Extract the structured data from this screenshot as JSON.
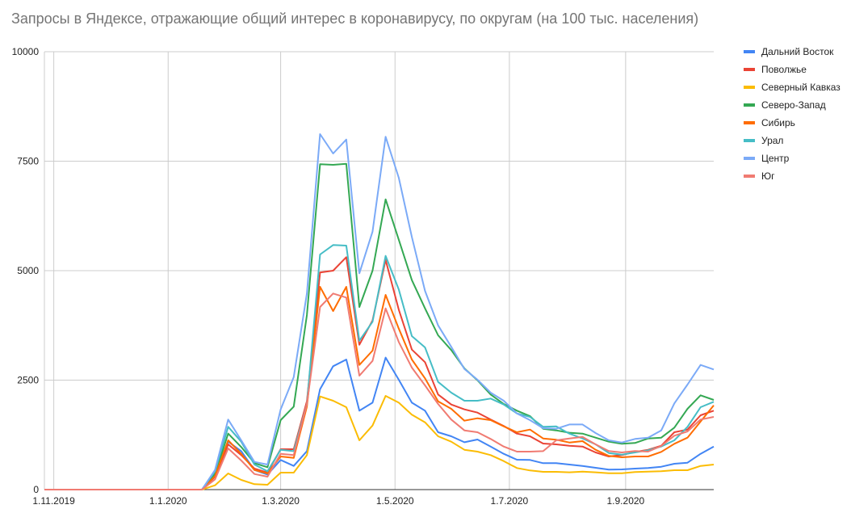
{
  "chart_data": {
    "type": "line",
    "title": "Запросы в Яндексе, отражающие общий интерес в коронавирусу, по округам (на 100 тыс. населения)",
    "xlabel": "",
    "ylabel": "",
    "ylim": [
      0,
      10000
    ],
    "xlim": [
      "2019-10-27",
      "2020-10-18"
    ],
    "yticks": [
      "0",
      "2500",
      "5000",
      "7500",
      "10000"
    ],
    "xticks": [
      {
        "label": "1.11.2019",
        "date": "2019-11-01"
      },
      {
        "label": "1.1.2020",
        "date": "2020-01-01"
      },
      {
        "label": "1.3.2020",
        "date": "2020-03-01"
      },
      {
        "label": "1.5.2020",
        "date": "2020-05-01"
      },
      {
        "label": "1.7.2020",
        "date": "2020-07-01"
      },
      {
        "label": "1.9.2020",
        "date": "2020-09-01"
      }
    ],
    "grid": true,
    "legend": "right",
    "x": [
      "2019-10-27",
      "2019-11-03",
      "2019-11-10",
      "2019-11-17",
      "2019-11-24",
      "2019-12-01",
      "2019-12-08",
      "2019-12-15",
      "2019-12-22",
      "2019-12-29",
      "2020-01-05",
      "2020-01-12",
      "2020-01-19",
      "2020-01-26",
      "2020-02-02",
      "2020-02-09",
      "2020-02-16",
      "2020-02-23",
      "2020-03-01",
      "2020-03-08",
      "2020-03-15",
      "2020-03-22",
      "2020-03-29",
      "2020-04-05",
      "2020-04-12",
      "2020-04-19",
      "2020-04-26",
      "2020-05-03",
      "2020-05-10",
      "2020-05-17",
      "2020-05-24",
      "2020-05-31",
      "2020-06-07",
      "2020-06-14",
      "2020-06-21",
      "2020-06-28",
      "2020-07-05",
      "2020-07-12",
      "2020-07-19",
      "2020-07-26",
      "2020-08-02",
      "2020-08-09",
      "2020-08-16",
      "2020-08-23",
      "2020-08-30",
      "2020-09-06",
      "2020-09-13",
      "2020-09-20",
      "2020-09-27",
      "2020-10-04",
      "2020-10-11",
      "2020-10-18"
    ],
    "series": [
      {
        "name": "Дальний Восток",
        "color": "#4285f4",
        "values": [
          0,
          0,
          0,
          0,
          0,
          0,
          0,
          0,
          0,
          0,
          0,
          0,
          0,
          387,
          1095,
          879,
          449,
          344,
          677,
          541,
          879,
          2294,
          2817,
          2970,
          1802,
          1986,
          3014,
          2509,
          1986,
          1802,
          1310,
          1218,
          1082,
          1144,
          984,
          818,
          683,
          677,
          603,
          603,
          572,
          541,
          498,
          455,
          461,
          480,
          492,
          523,
          590,
          615,
          818,
          984
        ]
      },
      {
        "name": "Поволжье",
        "color": "#ea4335",
        "values": [
          0,
          0,
          0,
          0,
          0,
          0,
          0,
          0,
          0,
          0,
          0,
          0,
          0,
          295,
          1033,
          787,
          480,
          387,
          923,
          923,
          2017,
          4957,
          5000,
          5308,
          3309,
          3862,
          5246,
          4108,
          3198,
          2909,
          2171,
          1943,
          1833,
          1759,
          1599,
          1452,
          1279,
          1218,
          1052,
          1033,
          1002,
          984,
          849,
          757,
          787,
          861,
          910,
          1002,
          1310,
          1371,
          1697,
          1802
        ]
      },
      {
        "name": "Северный Кавказ",
        "color": "#fbbc04",
        "values": [
          0,
          0,
          0,
          0,
          0,
          0,
          0,
          0,
          0,
          0,
          0,
          0,
          0,
          98,
          369,
          221,
          123,
          111,
          387,
          387,
          787,
          2128,
          2030,
          1882,
          1125,
          1463,
          2140,
          1986,
          1710,
          1537,
          1218,
          1095,
          910,
          867,
          787,
          652,
          492,
          437,
          406,
          406,
          394,
          412,
          394,
          375,
          375,
          400,
          412,
          418,
          443,
          443,
          541,
          572
        ]
      },
      {
        "name": "Северо-Запад",
        "color": "#34a853",
        "values": [
          0,
          0,
          0,
          0,
          0,
          0,
          0,
          0,
          0,
          0,
          0,
          0,
          0,
          356,
          1279,
          972,
          603,
          511,
          1587,
          1895,
          3985,
          7429,
          7417,
          7441,
          4170,
          5000,
          6630,
          5707,
          4785,
          4139,
          3524,
          3186,
          2768,
          2497,
          2171,
          1956,
          1802,
          1679,
          1390,
          1353,
          1298,
          1279,
          1187,
          1095,
          1046,
          1064,
          1168,
          1187,
          1415,
          1845,
          2153,
          2048
        ]
      },
      {
        "name": "Сибирь",
        "color": "#ff6d01",
        "values": [
          0,
          0,
          0,
          0,
          0,
          0,
          0,
          0,
          0,
          0,
          0,
          0,
          0,
          308,
          1125,
          818,
          449,
          369,
          756,
          726,
          1894,
          4631,
          4077,
          4631,
          2847,
          3173,
          4446,
          3677,
          2970,
          2540,
          2017,
          1845,
          1574,
          1630,
          1587,
          1445,
          1310,
          1371,
          1168,
          1138,
          1076,
          1107,
          910,
          769,
          738,
          757,
          757,
          861,
          1046,
          1187,
          1556,
          1925
        ]
      },
      {
        "name": "Урал",
        "color": "#46bdc6",
        "values": [
          0,
          0,
          0,
          0,
          0,
          0,
          0,
          0,
          0,
          0,
          0,
          0,
          0,
          418,
          1433,
          1095,
          572,
          418,
          910,
          879,
          1956,
          5369,
          5584,
          5572,
          3401,
          3832,
          5338,
          4570,
          3506,
          3247,
          2460,
          2214,
          2030,
          2030,
          2079,
          1943,
          1740,
          1660,
          1433,
          1445,
          1279,
          1168,
          1033,
          836,
          799,
          849,
          898,
          984,
          1125,
          1433,
          1882,
          2005
        ]
      },
      {
        "name": "Центр",
        "color": "#7baaf7",
        "values": [
          0,
          0,
          0,
          0,
          0,
          0,
          0,
          0,
          0,
          0,
          0,
          0,
          0,
          449,
          1599,
          1125,
          633,
          572,
          1833,
          2571,
          4477,
          8118,
          7675,
          7995,
          4939,
          5892,
          8057,
          7122,
          5769,
          4539,
          3751,
          3260,
          2755,
          2509,
          2214,
          2030,
          1740,
          1587,
          1402,
          1390,
          1488,
          1488,
          1291,
          1125,
          1076,
          1156,
          1187,
          1353,
          1968,
          2399,
          2847,
          2743
        ]
      },
      {
        "name": "Юг",
        "color": "#f07b72",
        "values": [
          0,
          0,
          0,
          0,
          0,
          0,
          0,
          0,
          0,
          0,
          0,
          0,
          0,
          234,
          941,
          664,
          356,
          295,
          818,
          787,
          1956,
          4170,
          4477,
          4385,
          2601,
          2940,
          4139,
          3370,
          2786,
          2380,
          1956,
          1599,
          1353,
          1310,
          1156,
          984,
          867,
          867,
          879,
          1125,
          1168,
          1205,
          1033,
          880,
          849,
          880,
          867,
          996,
          1230,
          1328,
          1599,
          1660
        ]
      }
    ]
  }
}
